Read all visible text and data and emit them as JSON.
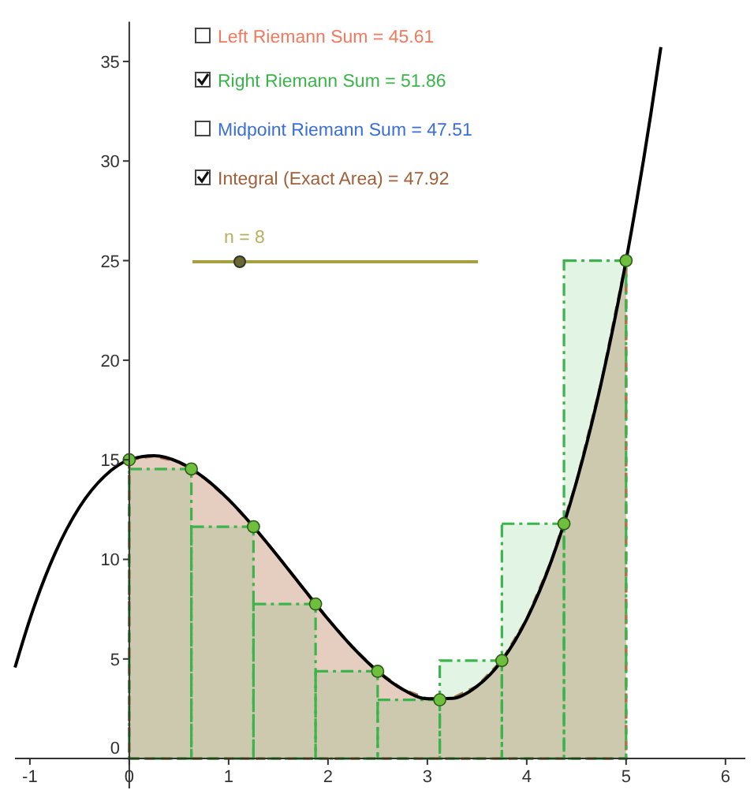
{
  "chart_data": {
    "type": "line",
    "xlim": [
      -1.15,
      6.2
    ],
    "ylim": [
      -1.5,
      37
    ],
    "xticks": [
      -1,
      0,
      1,
      2,
      3,
      4,
      5,
      6
    ],
    "yticks": [
      0,
      5,
      10,
      15,
      20,
      25,
      30,
      35
    ],
    "annotations": [
      "Left Riemann Sum  = 45.61",
      "Right Riemann Sum  = 51.86",
      "Midpoint Riemann Sum  = 47.51",
      "Integral (Exact Area)  = 47.92",
      "n = 8"
    ],
    "series": [
      {
        "type": "bar",
        "color": "#3cb44b",
        "x": [
          0.3125,
          0.9375,
          1.5625,
          2.1875,
          2.8125,
          3.4375,
          4.0625,
          4.6875
        ],
        "values": [
          14.54,
          11.64,
          7.76,
          4.38,
          2.95,
          4.92,
          11.79,
          25
        ]
      },
      {
        "type": "area",
        "color": "#b5704a",
        "line_style": "dashed",
        "x": [
          0,
          0.25,
          0.5,
          0.75,
          1,
          1.25,
          1.5,
          1.75,
          2,
          2.25,
          2.5,
          2.75,
          3,
          3.25,
          3.5,
          3.75,
          4,
          4.25,
          4.5,
          4.75,
          5
        ],
        "values": [
          15,
          15.2,
          14.88,
          14.11,
          13,
          11.64,
          10.13,
          8.55,
          7,
          5.58,
          4.38,
          3.48,
          3,
          3.02,
          3.63,
          4.92,
          7,
          9.95,
          13.88,
          18.86,
          25
        ]
      },
      {
        "color": "#000000",
        "x": [
          -1.15,
          -1,
          -0.75,
          -0.5,
          -0.25,
          0,
          0.25,
          0.5,
          0.75,
          1,
          1.25,
          1.5,
          1.75,
          2,
          2.25,
          2.5,
          2.75,
          3,
          3.25,
          3.5,
          3.75,
          4,
          4.25,
          4.5,
          4.75,
          5,
          5.25,
          5.35
        ],
        "values": [
          4.57,
          7,
          10.27,
          12.63,
          14.17,
          15,
          15.2,
          14.88,
          14.11,
          13,
          11.64,
          10.13,
          8.55,
          7,
          5.58,
          4.38,
          3.48,
          3,
          3.02,
          3.63,
          4.92,
          7,
          9.95,
          13.88,
          18.86,
          25,
          32.39,
          35.72
        ]
      },
      {
        "type": "scatter",
        "color": "#6fbf3f",
        "marker": "circle",
        "x": [
          0,
          0.625,
          1.25,
          1.875,
          2.5,
          3.125,
          3.75,
          4.375,
          5
        ],
        "values": [
          15,
          14.54,
          11.64,
          7.76,
          4.38,
          2.95,
          4.92,
          11.79,
          25
        ]
      }
    ]
  }
}
